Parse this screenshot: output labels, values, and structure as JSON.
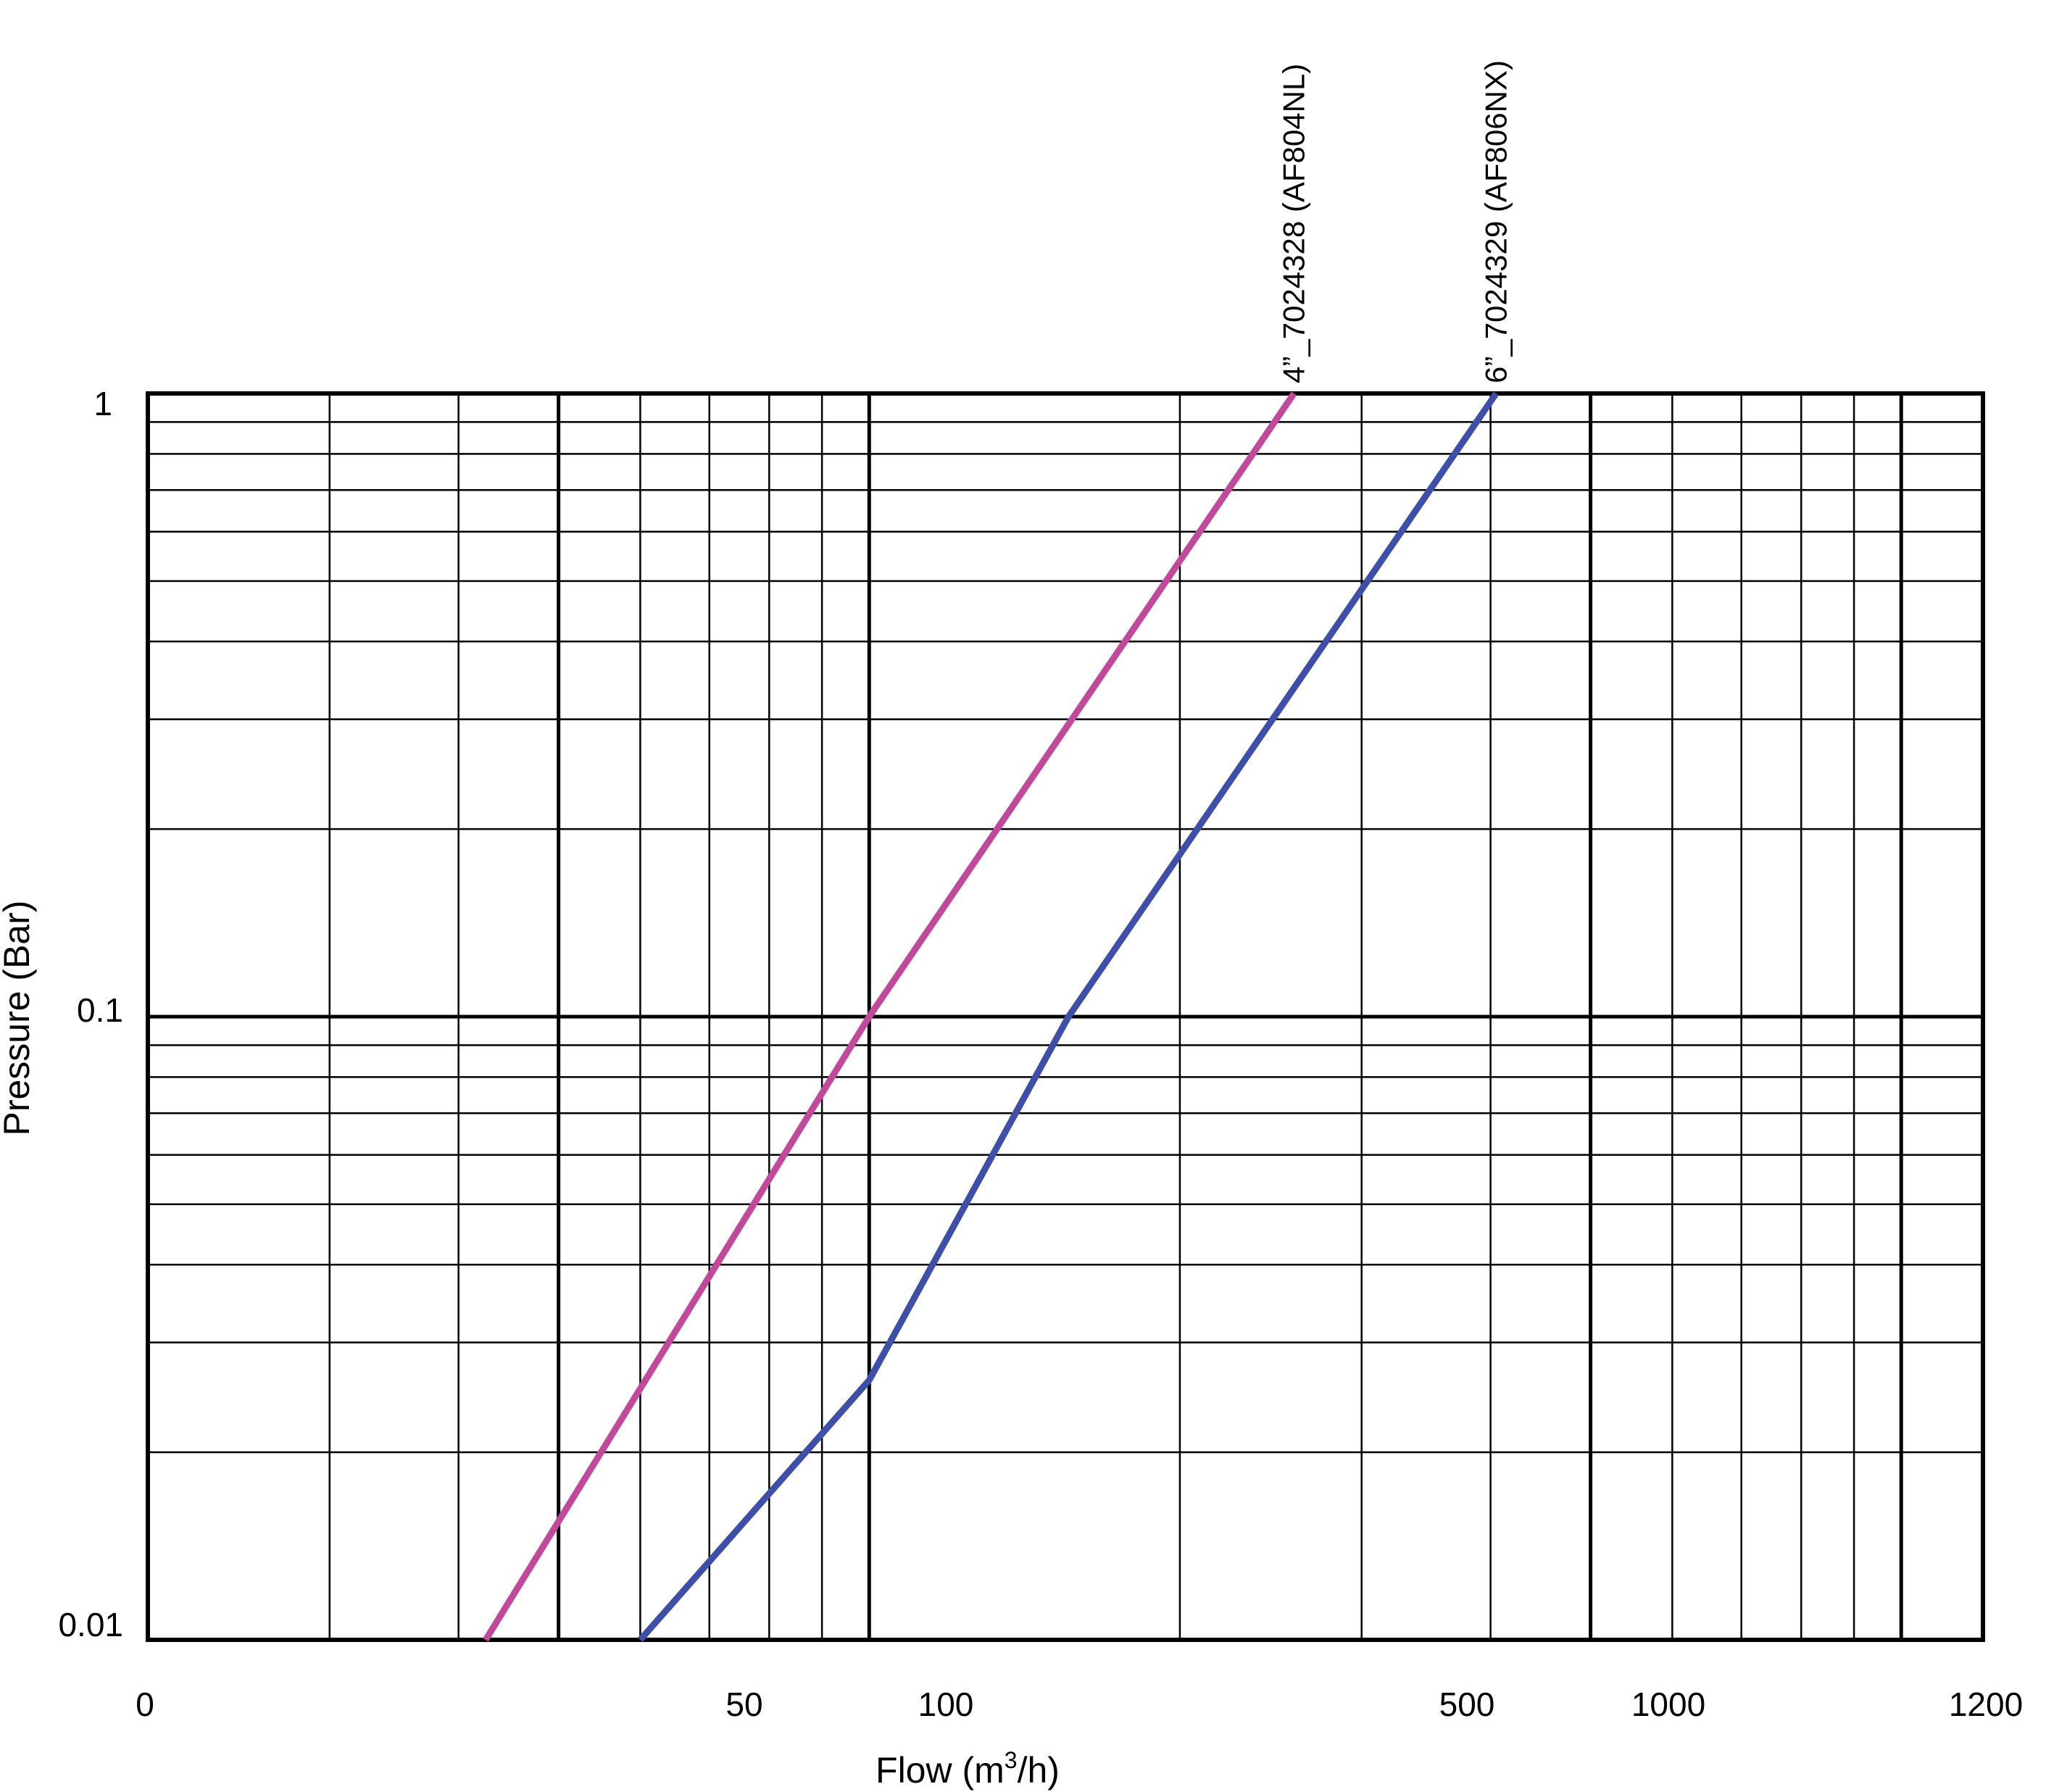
{
  "chart_data": {
    "type": "line",
    "title": "",
    "xlabel": "Flow (m",
    "xlabel_sup": "3",
    "xlabel_suffix": "/h)",
    "ylabel": "Pressure (Bar)",
    "x_scale": "log",
    "y_scale": "log",
    "xlim": [
      20,
      1200
    ],
    "ylim": [
      0.01,
      1
    ],
    "grid": true,
    "x_tick_labels": [
      "0",
      "50",
      "100",
      "500",
      "1000",
      "1200"
    ],
    "y_tick_labels": [
      "0.01",
      "0.1",
      "1"
    ],
    "series": [
      {
        "name": "4”_7024328 (AF804NL)",
        "color": "#c0499b",
        "x": [
          42.5,
          100,
          258
        ],
        "y": [
          0.01,
          0.1,
          1
        ]
      },
      {
        "name": "6”_7024329 (AF806NX)",
        "color": "#3d4fa8",
        "x": [
          60,
          100,
          156,
          405
        ],
        "y": [
          0.01,
          0.0261,
          0.1,
          1
        ]
      }
    ]
  }
}
